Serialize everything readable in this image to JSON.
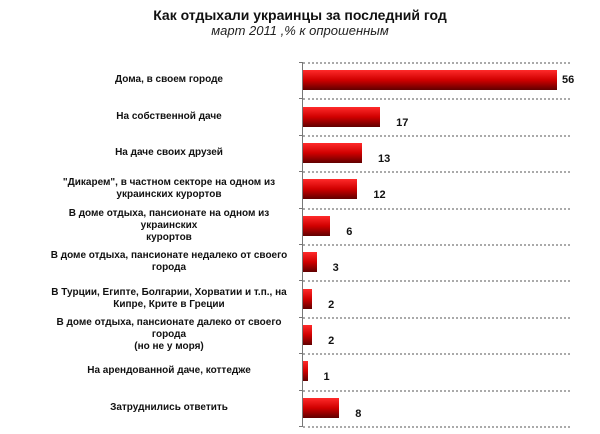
{
  "chart_data": {
    "type": "bar",
    "orientation": "horizontal",
    "title": "Как отдыхали украинцы за последний год",
    "subtitle": "март 2011 ,% к опрошенным",
    "categories": [
      "Дома, в своем городе",
      "На собственной даче",
      "На даче своих друзей",
      "\"Дикарем\", в частном секторе на одном из\nукраинских курортов",
      "В доме отдыха, пансионате на одном из украинских\nкурортов",
      "В доме отдыха, пансионате недалеко от своего\nгорода",
      "В Турции, Египте, Болгарии, Хорватии и т.п., на\nКипре, Крите в Греции",
      "В доме отдыха, пансионате далеко от своего города\n(но не у моря)",
      "На арендованной даче, коттедже",
      "Затруднились ответить"
    ],
    "values": [
      56,
      17,
      13,
      12,
      6,
      3,
      2,
      2,
      1,
      8
    ],
    "xlim": [
      0,
      59
    ],
    "grid": true,
    "bar_color": "#d00000"
  }
}
